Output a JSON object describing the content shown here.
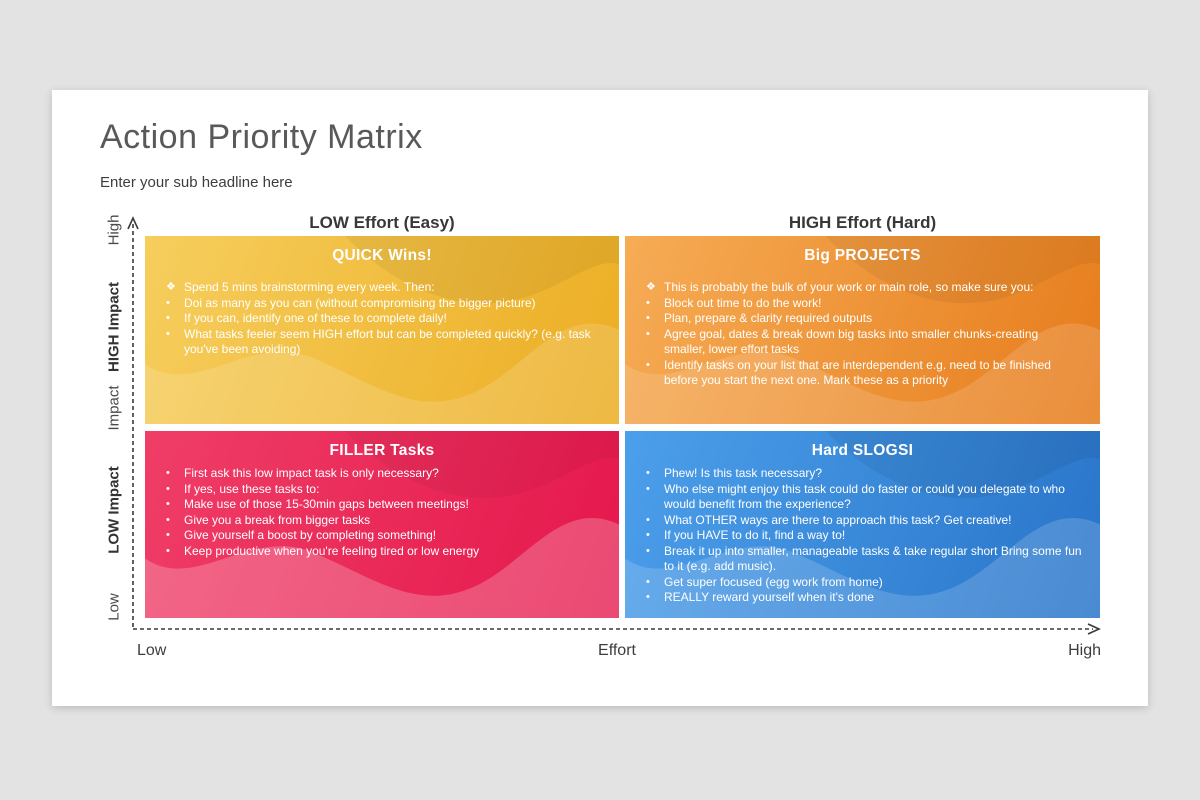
{
  "page": {
    "background_color": "#e3e3e3",
    "card_color": "#ffffff"
  },
  "header": {
    "title": "Action Priority Matrix",
    "subtitle": "Enter your sub headline here"
  },
  "column_headers": {
    "left": "LOW Effort (Easy)",
    "right": "HIGH Effort (Hard)"
  },
  "y_axis": {
    "top": "High",
    "upper": "HIGH Impact",
    "title": "Impact",
    "lower": "LOW Impact",
    "bottom": "Low"
  },
  "x_axis": {
    "left": "Low",
    "title": "Effort",
    "right": "High"
  },
  "quadrants": [
    {
      "id": "quick-wins",
      "title": "QUICK Wins!",
      "color_from": "#f6ce5d",
      "color_to": "#ecad23",
      "wave_light_opacity": 0.15,
      "bullets": [
        {
          "marker": "❖",
          "text": "Spend 5 mins brainstorming every week. Then:"
        },
        {
          "marker": "•",
          "text": "Doi as many as you can (without compromising the bigger picture)"
        },
        {
          "marker": "•",
          "text": "If you can, identify one of these to complete daily!"
        },
        {
          "marker": "•",
          "text": "What tasks feeler seem HIGH effort but can be completed quickly? (e.g. task you've been avoiding)"
        }
      ]
    },
    {
      "id": "big-projects",
      "title": "Big PROJECTS",
      "color_from": "#f6ac55",
      "color_to": "#e67c1c",
      "wave_light_opacity": 0.14,
      "bullets": [
        {
          "marker": "❖",
          "text": "This is probably the bulk of your work or main role, so make sure you:"
        },
        {
          "marker": "•",
          "text": "Block out time to do the work!"
        },
        {
          "marker": "•",
          "text": "Plan, prepare & clarity required outputs"
        },
        {
          "marker": "•",
          "text": "Agree goal, dates & break down big tasks into smaller chunks-creating smaller, lower effort tasks"
        },
        {
          "marker": "•",
          "text": "Identify tasks on your list that are interdependent e.g. need to be finished before you start the next one. Mark these as a priority"
        }
      ]
    },
    {
      "id": "filler-tasks",
      "title": "FILLER Tasks",
      "color_from": "#ef3e67",
      "color_to": "#e5174c",
      "wave_light_opacity": 0.22,
      "bullets": [
        {
          "marker": "•",
          "text": "First ask this low impact task is only necessary?"
        },
        {
          "marker": "•",
          "text": "If yes, use these tasks to:"
        },
        {
          "marker": "•",
          "text": "Make use of those 15-30min gaps between meetings!"
        },
        {
          "marker": "•",
          "text": "Give you a break from bigger tasks"
        },
        {
          "marker": "•",
          "text": "Give yourself a boost by completing something!"
        },
        {
          "marker": "•",
          "text": "Keep productive when you're feeling tired or low energy"
        }
      ]
    },
    {
      "id": "hard-slogs",
      "title": "Hard SLOGSI",
      "color_from": "#4c9fea",
      "color_to": "#2874c9",
      "wave_light_opacity": 0.16,
      "bullets": [
        {
          "marker": "•",
          "text": "Phew! Is this task necessary?"
        },
        {
          "marker": "•",
          "text": "Who else might enjoy this task could do faster or could you delegate to who would benefit from the experience?"
        },
        {
          "marker": "•",
          "text": "What OTHER ways are there to approach this task? Get creative!"
        },
        {
          "marker": "•",
          "text": "If you HAVE to do it, find a way to!"
        },
        {
          "marker": "•",
          "text": "Break it up into smaller, manageable tasks & take regular short Bring some fun to it (e.g. add music)."
        },
        {
          "marker": "•",
          "text": "Get super focused (egg work from home)"
        },
        {
          "marker": "•",
          "text": "REALLY reward yourself when it's done"
        }
      ]
    }
  ]
}
